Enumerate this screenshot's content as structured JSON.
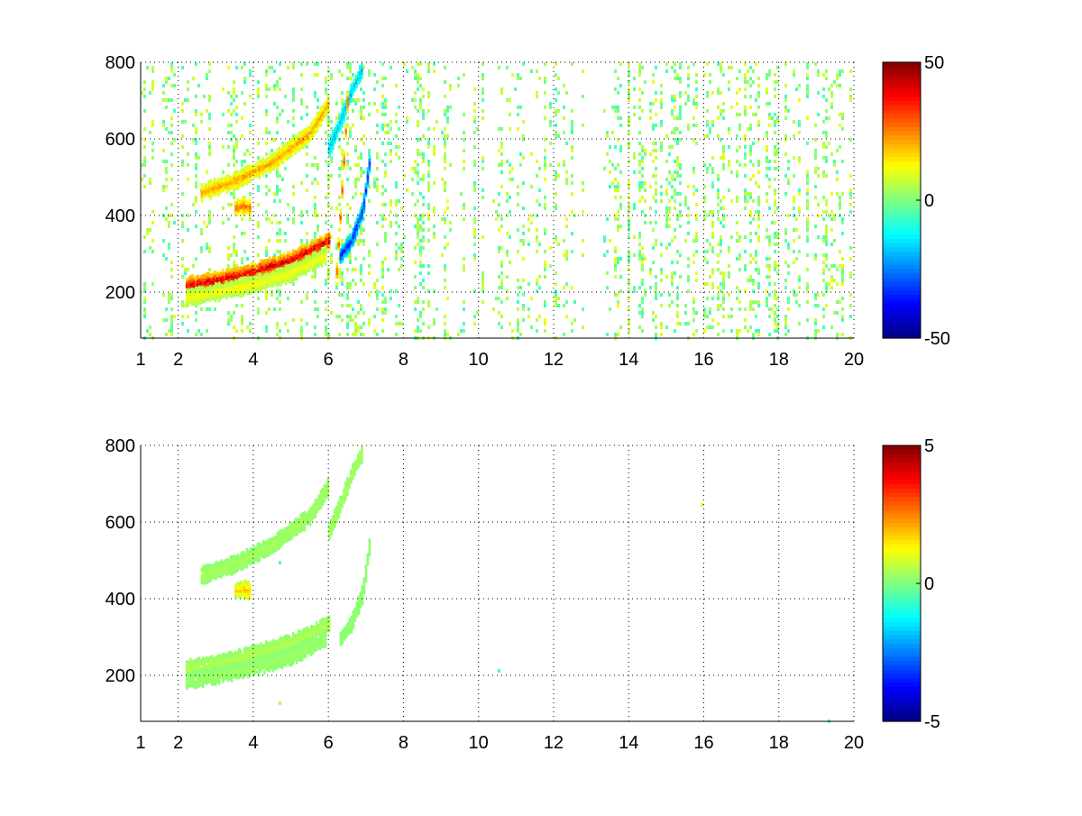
{
  "chart_data": [
    {
      "type": "heatmap",
      "title": "",
      "xlabel": "",
      "ylabel": "",
      "xlim": [
        1,
        20
      ],
      "ylim": [
        80,
        800
      ],
      "x_ticks": [
        "1",
        "2",
        "4",
        "6",
        "8",
        "10",
        "12",
        "14",
        "16",
        "18",
        "20"
      ],
      "x_tick_values": [
        1,
        2,
        4,
        6,
        8,
        10,
        12,
        14,
        16,
        18,
        20
      ],
      "y_ticks": [
        "200",
        "400",
        "600",
        "800"
      ],
      "y_tick_values": [
        200,
        400,
        600,
        800
      ],
      "grid": "dotted",
      "colormap": "jet",
      "color_limits": [
        -50,
        50
      ],
      "colorbar_ticks": [
        "50",
        "0",
        "-50"
      ],
      "colorbar_tick_values": [
        50,
        0,
        -50
      ],
      "ridges": [
        {
          "x": [
            2.2,
            3.0,
            4.0,
            5.0,
            6.0
          ],
          "y": [
            225,
            235,
            260,
            290,
            340
          ],
          "value": 42
        },
        {
          "x": [
            2.2,
            3.0,
            4.0,
            5.0,
            5.9
          ],
          "y": [
            190,
            205,
            225,
            255,
            300
          ],
          "value": 12
        },
        {
          "x": [
            2.6,
            3.5,
            4.5,
            5.5,
            6.0
          ],
          "y": [
            465,
            495,
            545,
            620,
            700
          ],
          "value": 22
        },
        {
          "x": [
            6.3,
            6.6,
            6.9,
            7.1
          ],
          "y": [
            300,
            340,
            420,
            560
          ],
          "value": -35
        },
        {
          "x": [
            6.0,
            6.3,
            6.6,
            6.9
          ],
          "y": [
            580,
            650,
            730,
            790
          ],
          "value": -20
        },
        {
          "x": [
            6.2,
            6.35,
            6.5
          ],
          "y": [
            260,
            480,
            720
          ],
          "value": 30
        },
        {
          "x": [
            3.5,
            3.7,
            3.9
          ],
          "y": [
            425,
            430,
            425
          ],
          "value": 28
        }
      ],
      "noise_density": 0.45
    },
    {
      "type": "heatmap",
      "title": "",
      "xlabel": "",
      "ylabel": "",
      "xlim": [
        1,
        20
      ],
      "ylim": [
        80,
        800
      ],
      "x_ticks": [
        "1",
        "2",
        "4",
        "6",
        "8",
        "10",
        "12",
        "14",
        "16",
        "18",
        "20"
      ],
      "x_tick_values": [
        1,
        2,
        4,
        6,
        8,
        10,
        12,
        14,
        16,
        18,
        20
      ],
      "y_ticks": [
        "200",
        "400",
        "600",
        "800"
      ],
      "y_tick_values": [
        200,
        400,
        600,
        800
      ],
      "grid": "dotted",
      "colormap": "jet",
      "color_limits": [
        -5,
        5
      ],
      "colorbar_ticks": [
        "5",
        "0",
        "-5"
      ],
      "colorbar_tick_values": [
        5,
        0,
        -5
      ],
      "ridges": [
        {
          "x": [
            2.2,
            3.0,
            4.0,
            5.0,
            6.0
          ],
          "y": [
            225,
            235,
            260,
            290,
            340
          ],
          "value": 0.5
        },
        {
          "x": [
            2.2,
            3.0,
            4.0,
            5.0,
            5.9
          ],
          "y": [
            190,
            205,
            225,
            255,
            300
          ],
          "value": 0.3
        },
        {
          "x": [
            2.6,
            3.5,
            4.5,
            5.5,
            6.0
          ],
          "y": [
            465,
            495,
            545,
            620,
            700
          ],
          "value": 0.4
        },
        {
          "x": [
            6.3,
            6.6,
            6.9,
            7.1
          ],
          "y": [
            300,
            340,
            420,
            560
          ],
          "value": 0.2
        },
        {
          "x": [
            6.0,
            6.3,
            6.6,
            6.9
          ],
          "y": [
            580,
            650,
            730,
            790
          ],
          "value": 0.4
        },
        {
          "x": [
            3.5,
            3.7,
            3.9
          ],
          "y": [
            425,
            430,
            425
          ],
          "value": 1.8
        }
      ],
      "noise_density": 0.02
    }
  ]
}
